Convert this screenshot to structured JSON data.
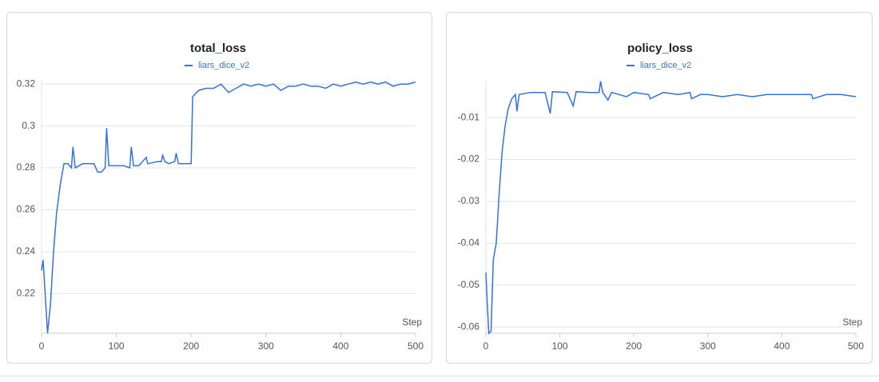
{
  "chart_data": [
    {
      "type": "line",
      "title": "total_loss",
      "x_label": "Step",
      "series": [
        {
          "name": "liars_dice_v2",
          "color": "#3572d9",
          "x": [
            0,
            2,
            4,
            8,
            12,
            16,
            20,
            25,
            30,
            35,
            40,
            42,
            45,
            55,
            70,
            75,
            80,
            85,
            87,
            90,
            100,
            110,
            118,
            120,
            123,
            130,
            140,
            142,
            155,
            160,
            162,
            165,
            170,
            178,
            180,
            183,
            195,
            200,
            202,
            210,
            220,
            230,
            240,
            250,
            260,
            270,
            280,
            290,
            300,
            310,
            320,
            330,
            340,
            350,
            360,
            370,
            380,
            390,
            400,
            410,
            420,
            430,
            440,
            450,
            460,
            470,
            480,
            490,
            500
          ],
          "values": [
            0.231,
            0.236,
            0.225,
            0.201,
            0.215,
            0.24,
            0.258,
            0.272,
            0.282,
            0.282,
            0.28,
            0.29,
            0.28,
            0.282,
            0.282,
            0.278,
            0.278,
            0.28,
            0.299,
            0.281,
            0.281,
            0.281,
            0.28,
            0.29,
            0.281,
            0.281,
            0.285,
            0.282,
            0.283,
            0.283,
            0.286,
            0.283,
            0.282,
            0.283,
            0.287,
            0.282,
            0.282,
            0.282,
            0.314,
            0.317,
            0.318,
            0.318,
            0.32,
            0.316,
            0.318,
            0.32,
            0.319,
            0.32,
            0.319,
            0.32,
            0.317,
            0.319,
            0.319,
            0.32,
            0.319,
            0.319,
            0.318,
            0.32,
            0.319,
            0.32,
            0.321,
            0.32,
            0.321,
            0.32,
            0.321,
            0.319,
            0.32,
            0.32,
            0.321
          ]
        }
      ],
      "xlim": [
        0,
        500
      ],
      "xticks": [
        0,
        100,
        200,
        300,
        400,
        500
      ],
      "ylim": [
        0.201,
        0.322
      ],
      "yticks": [
        0.22,
        0.24,
        0.26,
        0.28,
        0.3,
        0.32
      ],
      "grid": true
    },
    {
      "type": "line",
      "title": "policy_loss",
      "x_label": "Step",
      "series": [
        {
          "name": "liars_dice_v2",
          "color": "#3572d9",
          "x": [
            0,
            2,
            4,
            7,
            10,
            14,
            18,
            22,
            26,
            30,
            35,
            40,
            42,
            45,
            60,
            80,
            87,
            90,
            110,
            118,
            122,
            140,
            153,
            155,
            158,
            165,
            170,
            180,
            190,
            200,
            220,
            222,
            240,
            260,
            276,
            278,
            290,
            300,
            320,
            340,
            360,
            380,
            400,
            420,
            440,
            442,
            460,
            480,
            500
          ],
          "values": [
            -0.047,
            -0.055,
            -0.0615,
            -0.061,
            -0.044,
            -0.04,
            -0.028,
            -0.018,
            -0.012,
            -0.008,
            -0.0055,
            -0.0045,
            -0.0085,
            -0.0045,
            -0.004,
            -0.004,
            -0.009,
            -0.0038,
            -0.004,
            -0.0072,
            -0.0038,
            -0.004,
            -0.004,
            -0.0013,
            -0.004,
            -0.0058,
            -0.004,
            -0.0045,
            -0.005,
            -0.004,
            -0.0045,
            -0.0055,
            -0.004,
            -0.0045,
            -0.004,
            -0.0055,
            -0.0045,
            -0.0045,
            -0.005,
            -0.0045,
            -0.005,
            -0.0045,
            -0.0045,
            -0.0045,
            -0.0045,
            -0.0055,
            -0.0045,
            -0.0045,
            -0.005
          ]
        }
      ],
      "xlim": [
        0,
        500
      ],
      "xticks": [
        0,
        100,
        200,
        300,
        400,
        500
      ],
      "ylim": [
        -0.0615,
        -0.001
      ],
      "yticks": [
        -0.06,
        -0.05,
        -0.04,
        -0.03,
        -0.02,
        -0.01
      ],
      "grid": true
    }
  ]
}
